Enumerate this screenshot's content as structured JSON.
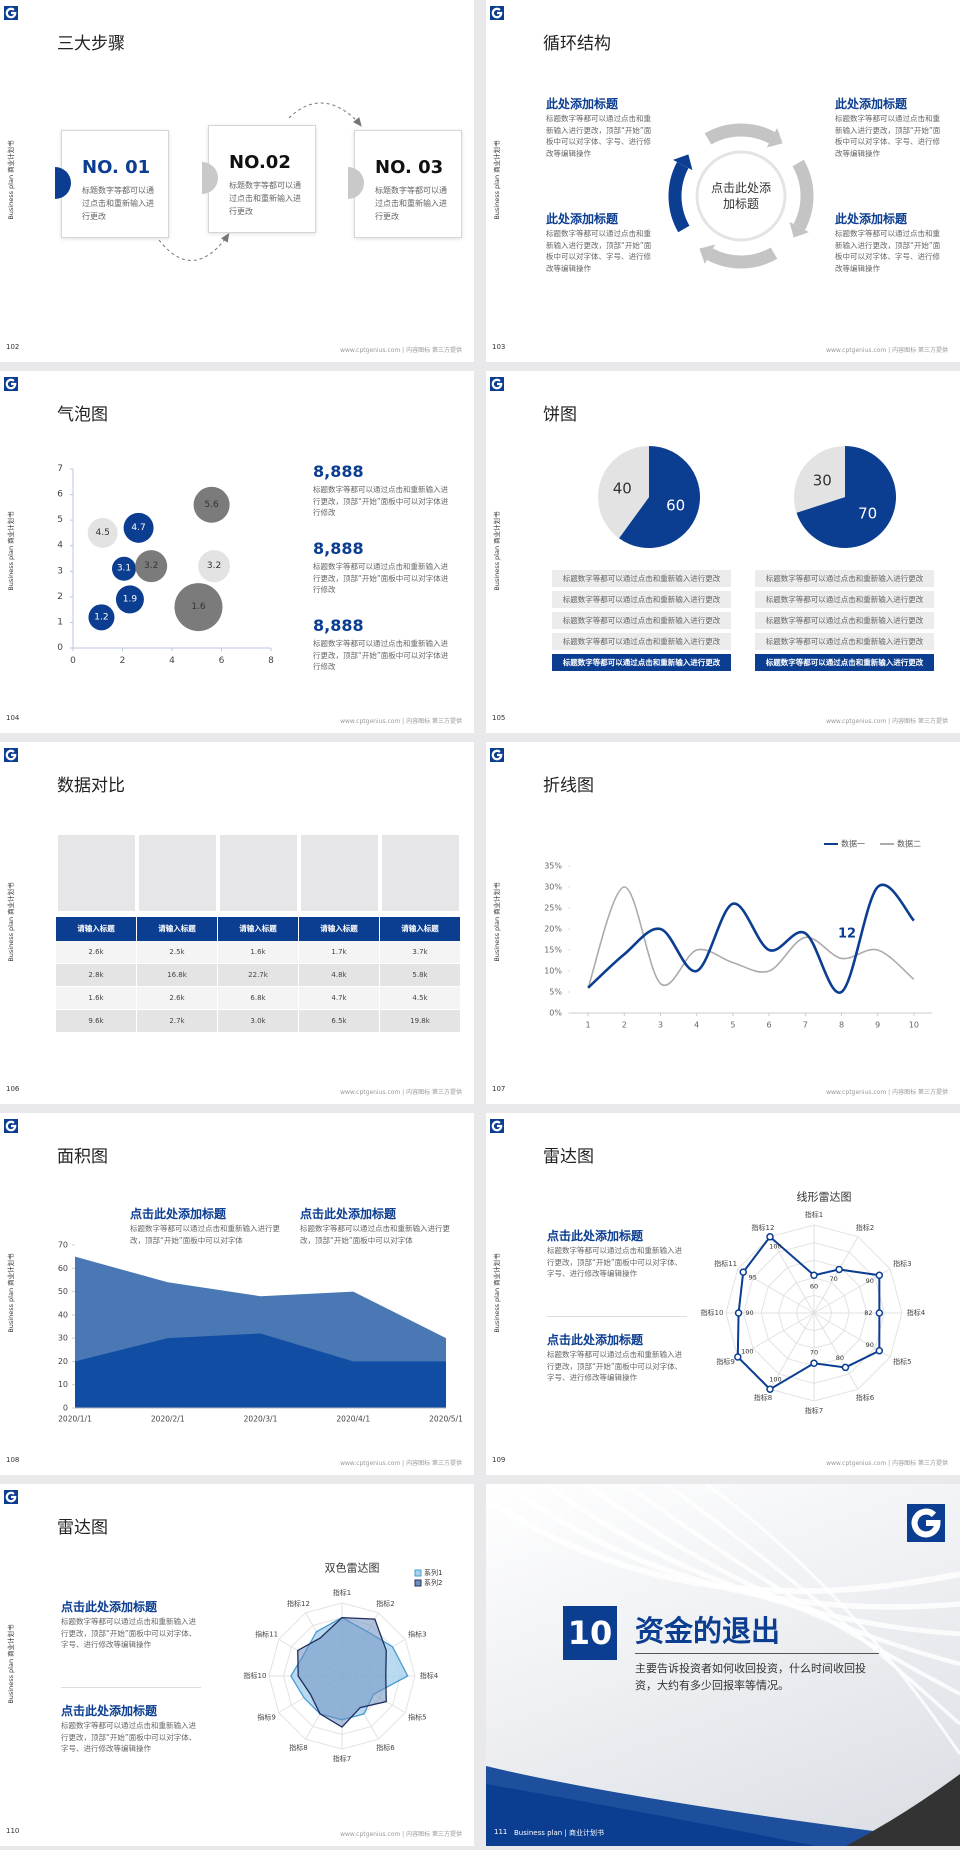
{
  "common": {
    "side_label": "Business plan 商业计划书",
    "footer": "www.cptgenius.com | 内容图标 第三方提供"
  },
  "slides": [
    {
      "page": "102",
      "title": "三大步骤",
      "steps": [
        {
          "number": "NO. 01",
          "text": "标题数字等都可以通过点击和重新输入进行更改"
        },
        {
          "number": "NO.02",
          "text": "标题数字等都可以通过点击和重新输入进行更改"
        },
        {
          "number": "NO. 03",
          "text": "标题数字等都可以通过点击和重新输入进行更改"
        }
      ]
    },
    {
      "page": "103",
      "title": "循环结构",
      "center": "点击此处添加标题",
      "blocks": [
        {
          "title": "此处添加标题",
          "text": "标题数字等都可以通过点击和重新输入进行更改，顶部“开始”面板中可以对字体、字号、进行修改等编辑操作"
        },
        {
          "title": "此处添加标题",
          "text": "标题数字等都可以通过点击和重新输入进行更改，顶部“开始”面板中可以对字体、字号、进行修改等编辑操作"
        },
        {
          "title": "此处添加标题",
          "text": "标题数字等都可以通过点击和重新输入进行更改，顶部“开始”面板中可以对字体、字号、进行修改等编辑操作"
        },
        {
          "title": "此处添加标题",
          "text": "标题数字等都可以通过点击和重新输入进行更改，顶部“开始”面板中可以对字体、字号、进行修改等编辑操作"
        }
      ]
    },
    {
      "page": "104",
      "title": "气泡图",
      "chart": {
        "type": "bubble",
        "series": [
          {
            "color": "#0b3d91",
            "label_color": "#ffffff",
            "x": [
              1.15,
              2.3,
              2.06,
              2.65
            ],
            "values": [
              1.2,
              1.9,
              3.1,
              4.7
            ],
            "sizes": [
              13,
              14,
              12,
              15
            ]
          },
          {
            "color": "#7b7b7b",
            "label_color": "#333333",
            "x": [
              3.16,
              5.6,
              5.07
            ],
            "values": [
              3.2,
              5.6,
              1.6
            ],
            "sizes": [
              16,
              18,
              24
            ]
          },
          {
            "color": "#e3e3e3",
            "label_color": "#333333",
            "x": [
              1.2,
              5.7
            ],
            "values": [
              4.5,
              3.2
            ],
            "sizes": [
              15,
              16
            ]
          }
        ],
        "xlim": [
          0,
          8
        ],
        "xticks": [
          0,
          2,
          4,
          6,
          8
        ],
        "ylim": [
          0,
          7
        ],
        "yticks": [
          0,
          1,
          2,
          3,
          4,
          5,
          6,
          7
        ]
      },
      "stats": [
        {
          "value": "8,888",
          "text": "标题数字等都可以通过点击和重新输入进行更改，顶部“开始”面板中可以对字体进行修改"
        },
        {
          "value": "8,888",
          "text": "标题数字等都可以通过点击和重新输入进行更改，顶部“开始”面板中可以对字体进行修改"
        },
        {
          "value": "8,888",
          "text": "标题数字等都可以通过点击和重新输入进行更改，顶部“开始”面板中可以对字体进行修改"
        }
      ]
    },
    {
      "page": "105",
      "title": "饼图",
      "charts": [
        {
          "type": "pie",
          "values": [
            60,
            40
          ],
          "colors": [
            "#0b3d91",
            "#e3e3e3"
          ]
        },
        {
          "type": "pie",
          "values": [
            70,
            30
          ],
          "colors": [
            "#0b3d91",
            "#e3e3e3"
          ]
        }
      ],
      "lists": [
        [
          "标题数字等都可以通过点击和重新输入进行更改",
          "标题数字等都可以通过点击和重新输入进行更改",
          "标题数字等都可以通过点击和重新输入进行更改",
          "标题数字等都可以通过点击和重新输入进行更改",
          "标题数字等都可以通过点击和重新输入进行更改"
        ],
        [
          "标题数字等都可以通过点击和重新输入进行更改",
          "标题数字等都可以通过点击和重新输入进行更改",
          "标题数字等都可以通过点击和重新输入进行更改",
          "标题数字等都可以通过点击和重新输入进行更改",
          "标题数字等都可以通过点击和重新输入进行更改"
        ]
      ]
    },
    {
      "page": "106",
      "title": "数据对比",
      "table": {
        "header": [
          "请输入标题",
          "请输入标题",
          "请输入标题",
          "请输入标题",
          "请输入标题"
        ],
        "rows": [
          [
            "2.6k",
            "2.5k",
            "1.6k",
            "1.7k",
            "3.7k"
          ],
          [
            "2.8k",
            "16.8k",
            "22.7k",
            "4.8k",
            "5.8k"
          ],
          [
            "1.6k",
            "2.6k",
            "6.8k",
            "4.7k",
            "4.5k"
          ],
          [
            "9.6k",
            "2.7k",
            "3.0k",
            "6.5k",
            "19.8k"
          ]
        ]
      }
    },
    {
      "page": "107",
      "title": "折线图",
      "chart": {
        "type": "line",
        "x": [
          1,
          2,
          3,
          4,
          5,
          6,
          7,
          8,
          9,
          10
        ],
        "series": [
          {
            "name": "数据一",
            "color": "#0b3d91",
            "values": [
              6,
              14,
              20,
              10,
              26,
              15,
              19,
              5,
              30,
              22
            ]
          },
          {
            "name": "数据二",
            "color": "#ababab",
            "values": [
              6,
              30,
              7,
              15,
              12,
              10,
              18,
              13,
              15,
              8
            ]
          }
        ],
        "xlim": [
          0.5,
          10.5
        ],
        "xticks": [
          1,
          2,
          3,
          4,
          5,
          6,
          7,
          8,
          9,
          10
        ],
        "ylim": [
          0,
          35
        ],
        "yticks": [
          {
            "value": 0,
            "label": "0%"
          },
          {
            "value": 5,
            "label": "5%"
          },
          {
            "value": 10,
            "label": "10%"
          },
          {
            "value": 15,
            "label": "15%"
          },
          {
            "value": 20,
            "label": "20%"
          },
          {
            "value": 25,
            "label": "25%"
          },
          {
            "value": 30,
            "label": "30%"
          },
          {
            "value": 35,
            "label": "35%"
          }
        ],
        "annotation": "12",
        "legend": "top-right"
      }
    },
    {
      "page": "108",
      "title": "面积图",
      "chart": {
        "type": "area",
        "categories": [
          "2020/1/1",
          "2020/2/1",
          "2020/3/1",
          "2020/4/1",
          "2020/5/1"
        ],
        "series": [
          {
            "color": "#4a78b4",
            "values": [
              65,
              54,
              48,
              50,
              30
            ]
          },
          {
            "color": "#114ea3",
            "values": [
              20,
              30,
              32,
              20,
              20
            ]
          }
        ],
        "ylim": [
          0,
          70
        ],
        "yticks": [
          0,
          10,
          20,
          30,
          40,
          50,
          60,
          70
        ]
      },
      "blocks": [
        {
          "title": "点击此处添加标题",
          "text": "标题数字等都可以通过点击和重新输入进行更改，顶部“开始”面板中可以对字体"
        },
        {
          "title": "点击此处添加标题",
          "text": "标题数字等都可以通过点击和重新输入进行更改，顶部“开始”面板中可以对字体"
        }
      ]
    },
    {
      "page": "109",
      "title": "雷达图",
      "chart": {
        "type": "radar",
        "title": "线形雷达图",
        "categories": [
          "指标1",
          "指标2",
          "指标3",
          "指标4",
          "指标5",
          "指标6",
          "指标7",
          "指标8",
          "指标9",
          "指标10",
          "指标11",
          "指标12"
        ],
        "series": [
          {
            "color": "#0b3d91",
            "values": [
              60,
              70,
              90,
              82,
              90,
              80,
              70,
              100,
              100,
              90,
              95,
              100
            ]
          }
        ],
        "rlim": [
          30,
          100
        ],
        "data_labels": true
      },
      "blocks": [
        {
          "title": "点击此处添加标题",
          "text": "标题数字等都可以通过点击和重新输入进行更改，顶部“开始”面板中可以对字体、字号、进行修改等编辑操作"
        },
        {
          "title": "点击此处添加标题",
          "text": "标题数字等都可以通过点击和重新输入进行更改，顶部“开始”面板中可以对字体、字号、进行修改等编辑操作"
        }
      ]
    },
    {
      "page": "110",
      "title": "雷达图",
      "chart": {
        "type": "radar",
        "title": "双色雷达图",
        "categories": [
          "指标1",
          "指标2",
          "指标3",
          "指标4",
          "指标5",
          "指标6",
          "指标7",
          "指标8",
          "指标9",
          "指标10",
          "指标11",
          "指标12"
        ],
        "series": [
          {
            "name": "系列1",
            "color": "#4a9bd1",
            "fill": "#a8d2ee",
            "values": [
              4,
              3.5,
              4,
              4.5,
              2.5,
              3,
              3,
              3,
              3,
              3.5,
              3,
              3.5
            ]
          },
          {
            "name": "系列2",
            "color": "#1f2d5c",
            "fill": "#6d8fc0",
            "values": [
              4,
              4.5,
              3.5,
              3,
              3.5,
              2.5,
              3.5,
              3,
              2.5,
              3,
              3.5,
              3
            ]
          }
        ],
        "rlim": [
          0,
          5
        ],
        "legend": "top-right"
      },
      "blocks": [
        {
          "title": "点击此处添加标题",
          "text": "标题数字等都可以通过点击和重新输入进行更改，顶部“开始”面板中可以对字体、字号、进行修改等编辑操作"
        },
        {
          "title": "点击此处添加标题",
          "text": "标题数字等都可以通过点击和重新输入进行更改，顶部“开始”面板中可以对字体、字号、进行修改等编辑操作"
        }
      ]
    },
    {
      "page": "111",
      "number": "10",
      "title": "资金的退出",
      "text": "主要告诉投资者如何收回投资，什么时间收回投资，大约有多少回报率等情况。",
      "footer": "Business plan | 商业计划书"
    }
  ]
}
